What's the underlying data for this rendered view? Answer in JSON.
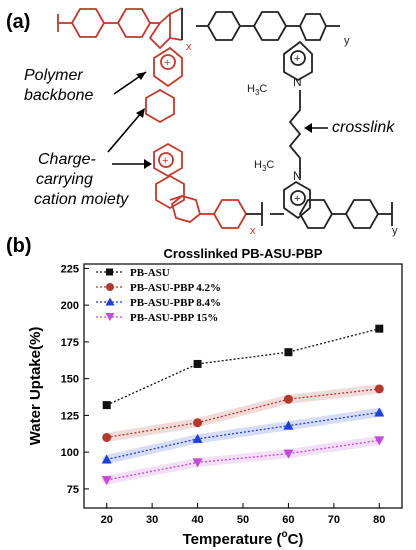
{
  "panel_a": {
    "label": "(a)",
    "annotations": {
      "backbone_line1": "Polymer",
      "backbone_line2": "backbone",
      "crosslink": "crosslink",
      "cation_line1": "Charge-",
      "cation_line2": "carrying",
      "cation_line3": "cation moiety"
    },
    "structure_labels": {
      "x_top": "x",
      "y_top": "y",
      "x_bottom": "x",
      "y_bottom": "y",
      "methyl_top": "CH",
      "methyl_top_sub": "3",
      "methyl_bottom": "CH",
      "methyl_bottom_sub": "3",
      "h3c_prefix": "H",
      "h3c_sub": "3",
      "h3c_suffix": "C",
      "h3c_bottom_prefix": "H",
      "h3c_bottom_sub": "3",
      "h3c_bottom_suffix": "C",
      "nitrogen": "N",
      "plus": "+"
    },
    "colors": {
      "backbone_red": "#c0392b",
      "backbone_black": "#222222"
    }
  },
  "panel_b": {
    "label": "(b)"
  },
  "colors": {
    "pb_asu": "#111111",
    "pbp_4_2": "#b03a2e",
    "pbp_8_4": "#1f3fd6",
    "pbp_15": "#c04bd6"
  },
  "chart_data": {
    "type": "line",
    "title": "Crosslinked PB-ASU-PBP",
    "xlabel_main": "Temperature (",
    "xlabel_sup": "o",
    "xlabel_end": "C)",
    "ylabel": "Water Uptake(%)",
    "x": [
      20,
      40,
      60,
      80
    ],
    "xlim": [
      15,
      85
    ],
    "ylim": [
      62,
      228
    ],
    "xticks": [
      20,
      30,
      40,
      50,
      60,
      70,
      80
    ],
    "yticks": [
      75,
      100,
      125,
      150,
      175,
      200,
      225
    ],
    "grid": false,
    "legend_position": "top-left",
    "series": [
      {
        "name": "PB-ASU",
        "marker": "square",
        "values": [
          132,
          160,
          168,
          184
        ]
      },
      {
        "name": "PB-ASU-PBP 4.2%",
        "marker": "circle",
        "values": [
          110,
          120,
          136,
          143
        ]
      },
      {
        "name": "PB-ASU-PBP 8.4%",
        "marker": "triangle-up",
        "values": [
          95,
          109,
          118,
          127
        ]
      },
      {
        "name": "PB-ASU-PBP 15%",
        "marker": "triangle-down",
        "values": [
          81,
          93,
          99,
          108
        ]
      }
    ]
  }
}
